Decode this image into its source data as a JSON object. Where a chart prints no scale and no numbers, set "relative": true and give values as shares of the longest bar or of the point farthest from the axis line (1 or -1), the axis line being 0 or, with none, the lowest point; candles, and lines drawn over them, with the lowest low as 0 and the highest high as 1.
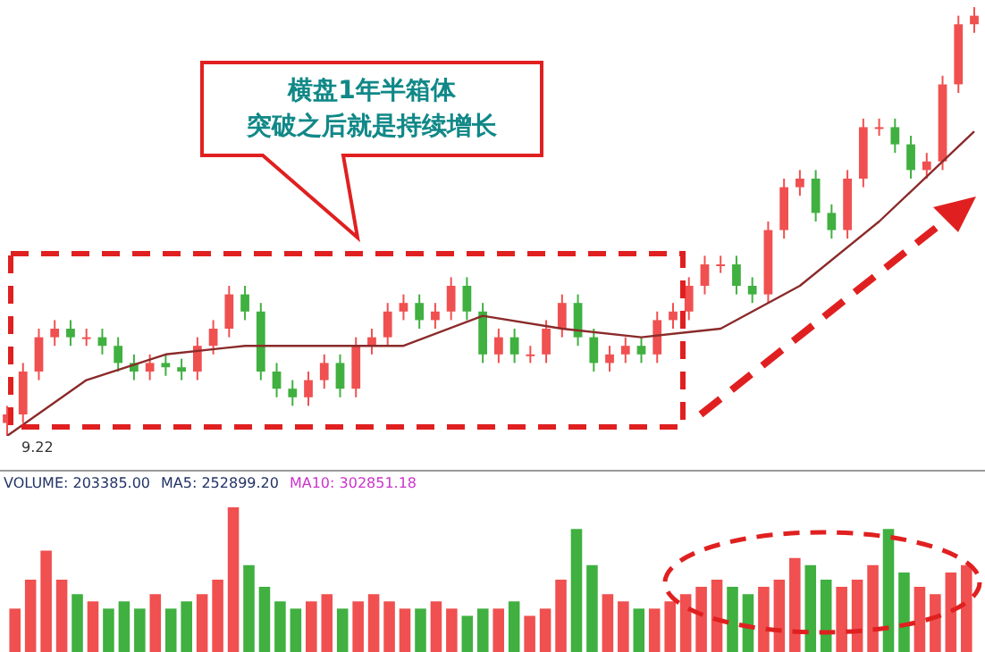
{
  "chart_data": [
    {
      "type": "candlestick",
      "relative": true,
      "categories": [
        null,
        null,
        null,
        null,
        null,
        null,
        null,
        null,
        null,
        null,
        null,
        null,
        null,
        null,
        null,
        null,
        null,
        null,
        null,
        null,
        null,
        null,
        null,
        null,
        null,
        null,
        null,
        null,
        null,
        null,
        null,
        null,
        null,
        null,
        null,
        null,
        null,
        null,
        null,
        null,
        null,
        null,
        null,
        null,
        null,
        null,
        null,
        null,
        null,
        null,
        null,
        null,
        null,
        null,
        null,
        null,
        null,
        null,
        null,
        null,
        null,
        null
      ],
      "ohlc": [
        [
          0.03,
          0.07,
          0.0,
          0.05
        ],
        [
          0.05,
          0.17,
          0.03,
          0.15
        ],
        [
          0.15,
          0.25,
          0.13,
          0.23
        ],
        [
          0.23,
          0.27,
          0.21,
          0.25
        ],
        [
          0.25,
          0.27,
          0.21,
          0.23
        ],
        [
          0.23,
          0.25,
          0.21,
          0.23
        ],
        [
          0.23,
          0.25,
          0.19,
          0.21
        ],
        [
          0.21,
          0.23,
          0.15,
          0.17
        ],
        [
          0.17,
          0.19,
          0.13,
          0.15
        ],
        [
          0.15,
          0.19,
          0.13,
          0.17
        ],
        [
          0.17,
          0.19,
          0.14,
          0.16
        ],
        [
          0.16,
          0.18,
          0.13,
          0.15
        ],
        [
          0.15,
          0.23,
          0.13,
          0.21
        ],
        [
          0.21,
          0.27,
          0.19,
          0.25
        ],
        [
          0.25,
          0.35,
          0.23,
          0.33
        ],
        [
          0.33,
          0.35,
          0.27,
          0.29
        ],
        [
          0.29,
          0.31,
          0.13,
          0.15
        ],
        [
          0.15,
          0.17,
          0.09,
          0.11
        ],
        [
          0.11,
          0.13,
          0.07,
          0.09
        ],
        [
          0.09,
          0.15,
          0.07,
          0.13
        ],
        [
          0.13,
          0.19,
          0.11,
          0.17
        ],
        [
          0.17,
          0.19,
          0.09,
          0.11
        ],
        [
          0.11,
          0.23,
          0.09,
          0.21
        ],
        [
          0.21,
          0.25,
          0.19,
          0.23
        ],
        [
          0.23,
          0.31,
          0.21,
          0.29
        ],
        [
          0.29,
          0.33,
          0.27,
          0.31
        ],
        [
          0.31,
          0.33,
          0.25,
          0.27
        ],
        [
          0.27,
          0.31,
          0.25,
          0.29
        ],
        [
          0.29,
          0.37,
          0.27,
          0.35
        ],
        [
          0.35,
          0.37,
          0.27,
          0.29
        ],
        [
          0.29,
          0.31,
          0.17,
          0.19
        ],
        [
          0.19,
          0.25,
          0.17,
          0.23
        ],
        [
          0.23,
          0.25,
          0.17,
          0.19
        ],
        [
          0.19,
          0.21,
          0.17,
          0.19
        ],
        [
          0.19,
          0.27,
          0.17,
          0.25
        ],
        [
          0.25,
          0.33,
          0.23,
          0.31
        ],
        [
          0.31,
          0.33,
          0.21,
          0.23
        ],
        [
          0.23,
          0.25,
          0.15,
          0.17
        ],
        [
          0.17,
          0.21,
          0.15,
          0.19
        ],
        [
          0.19,
          0.23,
          0.17,
          0.21
        ],
        [
          0.21,
          0.23,
          0.17,
          0.19
        ],
        [
          0.19,
          0.29,
          0.17,
          0.27
        ],
        [
          0.27,
          0.31,
          0.25,
          0.29
        ],
        [
          0.29,
          0.37,
          0.27,
          0.35
        ],
        [
          0.35,
          0.42,
          0.33,
          0.4
        ],
        [
          0.4,
          0.42,
          0.38,
          0.4
        ],
        [
          0.4,
          0.42,
          0.33,
          0.35
        ],
        [
          0.35,
          0.37,
          0.31,
          0.33
        ],
        [
          0.33,
          0.5,
          0.31,
          0.48
        ],
        [
          0.48,
          0.6,
          0.46,
          0.58
        ],
        [
          0.58,
          0.62,
          0.56,
          0.6
        ],
        [
          0.6,
          0.62,
          0.5,
          0.52
        ],
        [
          0.52,
          0.54,
          0.46,
          0.48
        ],
        [
          0.48,
          0.62,
          0.46,
          0.6
        ],
        [
          0.6,
          0.74,
          0.58,
          0.72
        ],
        [
          0.72,
          0.74,
          0.7,
          0.72
        ],
        [
          0.72,
          0.74,
          0.66,
          0.68
        ],
        [
          0.68,
          0.7,
          0.6,
          0.62
        ],
        [
          0.62,
          0.66,
          0.6,
          0.64
        ],
        [
          0.64,
          0.84,
          0.62,
          0.82
        ],
        [
          0.82,
          0.98,
          0.8,
          0.96
        ],
        [
          0.96,
          1.0,
          0.94,
          0.98
        ]
      ],
      "series": [
        {
          "type": "line",
          "color": "#8b2a2a",
          "values": [
            0.0,
            null,
            null,
            null,
            null,
            0.13,
            null,
            null,
            null,
            null,
            0.19,
            null,
            null,
            null,
            null,
            0.21,
            null,
            null,
            null,
            null,
            0.21,
            null,
            null,
            null,
            null,
            0.21,
            null,
            null,
            null,
            null,
            0.28,
            null,
            null,
            null,
            null,
            0.25,
            null,
            null,
            null,
            null,
            0.23,
            null,
            null,
            null,
            null,
            0.25,
            null,
            null,
            null,
            null,
            0.35,
            null,
            null,
            null,
            null,
            0.5,
            null,
            null,
            null,
            null,
            null,
            0.71
          ]
        }
      ],
      "annotations": [
        "横盘1年半箱体",
        "突破之后就是持续增长",
        "9.22"
      ]
    },
    {
      "type": "bar",
      "relative": true,
      "categories": [
        null,
        null,
        null,
        null,
        null,
        null,
        null,
        null,
        null,
        null,
        null,
        null,
        null,
        null,
        null,
        null,
        null,
        null,
        null,
        null,
        null,
        null,
        null,
        null,
        null,
        null,
        null,
        null,
        null,
        null,
        null,
        null,
        null,
        null,
        null,
        null,
        null,
        null,
        null,
        null,
        null,
        null,
        null,
        null,
        null,
        null,
        null,
        null,
        null,
        null,
        null,
        null,
        null,
        null,
        null,
        null,
        null,
        null,
        null,
        null,
        null,
        null
      ],
      "values": [
        0.3,
        0.5,
        0.7,
        0.5,
        0.4,
        0.35,
        0.3,
        0.35,
        0.3,
        0.4,
        0.3,
        0.35,
        0.4,
        0.5,
        1.0,
        0.6,
        0.45,
        0.35,
        0.3,
        0.35,
        0.4,
        0.3,
        0.35,
        0.4,
        0.35,
        0.3,
        0.3,
        0.35,
        0.3,
        0.25,
        0.3,
        0.3,
        0.35,
        0.25,
        0.3,
        0.5,
        0.85,
        0.6,
        0.4,
        0.35,
        0.3,
        0.3,
        0.35,
        0.4,
        0.45,
        0.5,
        0.45,
        0.4,
        0.45,
        0.5,
        0.65,
        0.6,
        0.5,
        0.45,
        0.5,
        0.6,
        0.85,
        0.55,
        0.45,
        0.4,
        0.55,
        0.6
      ],
      "colors": [
        "#f05050",
        "#f05050",
        "#f05050",
        "#f05050",
        "#40b040",
        "#f05050",
        "#40b040",
        "#40b040",
        "#40b040",
        "#f05050",
        "#40b040",
        "#40b040",
        "#f05050",
        "#f05050",
        "#f05050",
        "#40b040",
        "#40b040",
        "#40b040",
        "#40b040",
        "#f05050",
        "#f05050",
        "#40b040",
        "#f05050",
        "#f05050",
        "#f05050",
        "#f05050",
        "#40b040",
        "#f05050",
        "#f05050",
        "#40b040",
        "#40b040",
        "#f05050",
        "#40b040",
        "#f05050",
        "#f05050",
        "#f05050",
        "#40b040",
        "#40b040",
        "#f05050",
        "#f05050",
        "#40b040",
        "#f05050",
        "#f05050",
        "#f05050",
        "#f05050",
        "#f05050",
        "#40b040",
        "#40b040",
        "#f05050",
        "#f05050",
        "#f05050",
        "#40b040",
        "#40b040",
        "#f05050",
        "#f05050",
        "#f05050",
        "#40b040",
        "#40b040",
        "#f05050",
        "#f05050",
        "#f05050",
        "#f05050"
      ],
      "annotations": [
        "VOLUME: 203385.00",
        "MA5: 252899.20",
        "MA10: 302851.18"
      ]
    }
  ]
}
